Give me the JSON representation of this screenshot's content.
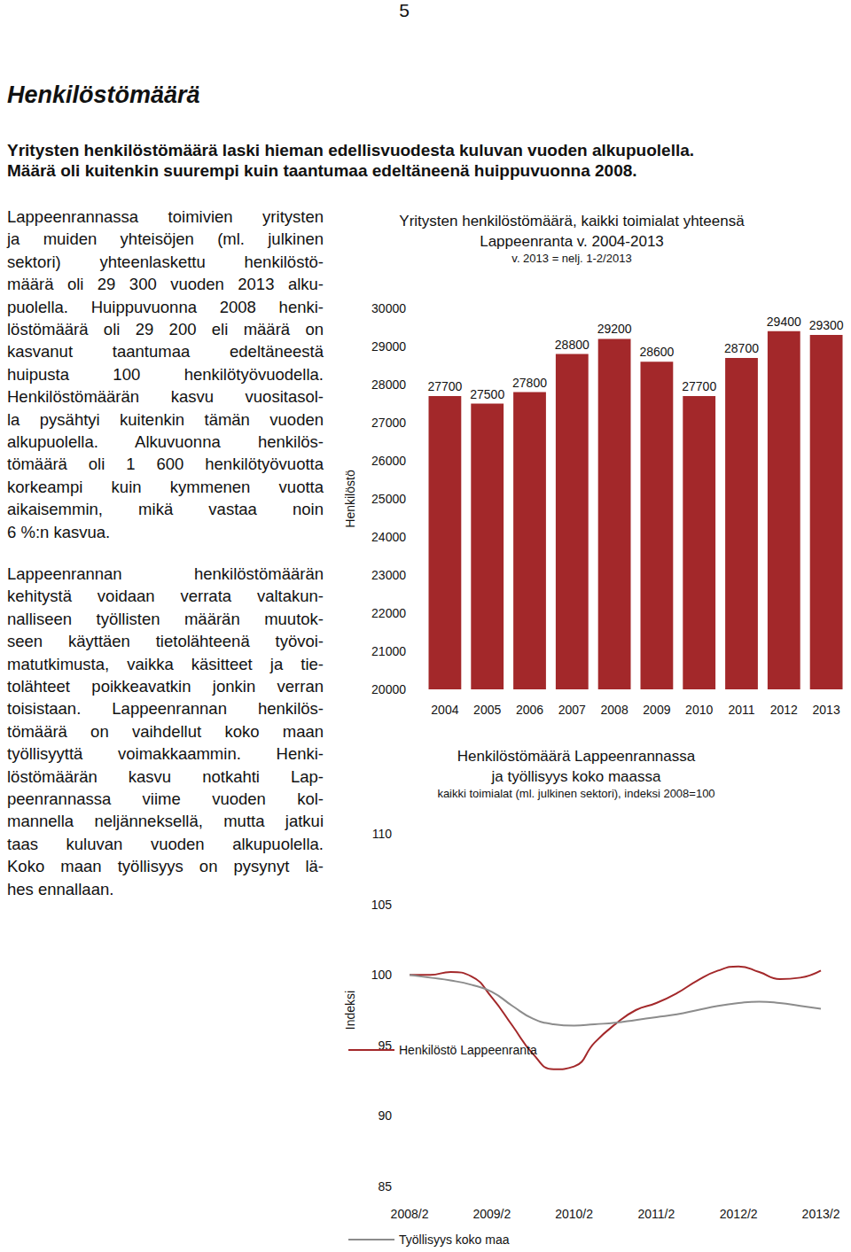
{
  "document": {
    "page_number": "5",
    "heading": "Henkilöstömäärä",
    "lead": [
      "Yritysten henkilöstömäärä laski hieman edellisvuodesta kuluvan vuoden alkupuolella.",
      "Määrä oli kuitenkin suurempi kuin taantumaa edeltäneenä huippuvuonna 2008."
    ],
    "paragraphs": [
      [
        "Lappeenrannassa toimivien yritysten",
        "ja muiden yhteisöjen (ml. julkinen",
        "sektori) yhteenlaskettu henkilöstö-",
        "määrä oli 29 300 vuoden 2013 alku-",
        "puolella. Huippuvuonna 2008 henki-",
        "löstömäärä oli 29 200 eli määrä on",
        "kasvanut taantumaa edeltäneestä",
        "huipusta 100 henkilötyövuodella.",
        "Henkilöstömäärän kasvu vuositasol-",
        "la pysähtyi kuitenkin tämän vuoden",
        "alkupuolella. Alkuvuonna henkilös-",
        "tömäärä oli 1 600 henkilötyövuotta",
        "korkeampi kuin kymmenen vuotta",
        "aikaisemmin, mikä vastaa noin",
        "6 %:n kasvua."
      ],
      [
        "Lappeenrannan henkilöstömäärän",
        "kehitystä voidaan verrata valtakun-",
        "nalliseen työllisten määrän muutok-",
        "seen käyttäen tietolähteenä työvoi-",
        "matutkimusta, vaikka käsitteet ja tie-",
        "tolähteet poikkeavatkin jonkin verran",
        "toisistaan. Lappeenrannan henkilös-",
        "tömäärä on vaihdellut koko maan",
        "työllisyyttä voimakkaammin. Henki-",
        "löstömäärän kasvu notkahti Lap-",
        "peenrannassa viime vuoden kol-",
        "mannella neljänneksellä, mutta jatkui",
        "taas kuluvan vuoden alkupuolella.",
        "Koko maan työllisyys on pysynyt lä-",
        "hes ennallaan."
      ]
    ]
  },
  "chart_data": [
    {
      "type": "bar",
      "title": "Yritysten henkilöstömäärä, kaikki toimialat yhteensä\nLappeenranta v. 2004-2013",
      "subtitle": "v. 2013 = nelj. 1-2/2013",
      "y_label": "Henkilöstö",
      "categories": [
        "2004",
        "2005",
        "2006",
        "2007",
        "2008",
        "2009",
        "2010",
        "2011",
        "2012",
        "2013"
      ],
      "values": [
        27700,
        27500,
        27800,
        28800,
        29200,
        28600,
        27700,
        28700,
        29400,
        29300
      ],
      "color": "#a3282a",
      "ylim": [
        20000,
        30000
      ],
      "yticks": [
        20000,
        21000,
        22000,
        23000,
        24000,
        25000,
        26000,
        27000,
        28000,
        29000,
        30000
      ],
      "grid": false,
      "data_labels": true
    },
    {
      "type": "line",
      "title": "Henkilöstömäärä Lappeenrannassa\nja työllisyys koko maassa",
      "subtitle": "kaikki toimialat (ml. julkinen sektori), indeksi 2008=100",
      "y_label": "Indeksi",
      "categories": [
        "2008/2",
        null,
        null,
        null,
        "2009/2",
        null,
        null,
        null,
        "2010/2",
        null,
        null,
        null,
        "2011/2",
        null,
        null,
        null,
        "2012/2",
        null,
        null,
        null,
        "2013/2"
      ],
      "series": [
        {
          "name": "Henkilöstö Lappeenranta",
          "color": "#a3282a",
          "values": [
            100.0,
            100.0,
            100.2,
            99.9,
            98.4,
            96.4,
            94.4,
            93.3,
            93.5,
            95.2,
            96.5,
            97.5,
            98.0,
            98.7,
            99.6,
            100.3,
            100.6,
            100.2,
            99.7,
            99.8,
            100.3
          ]
        },
        {
          "name": "Työllisyys koko maa",
          "color": "#8c8c8c",
          "values": [
            100.0,
            99.8,
            99.6,
            99.3,
            98.8,
            97.8,
            96.9,
            96.5,
            96.4,
            96.5,
            96.6,
            96.8,
            97.0,
            97.2,
            97.5,
            97.8,
            98.0,
            98.1,
            98.0,
            97.8,
            97.6
          ]
        }
      ],
      "ylim": [
        85,
        110
      ],
      "yticks": [
        85,
        90,
        95,
        100,
        105,
        110
      ],
      "grid": false,
      "legend": "bottom"
    }
  ]
}
